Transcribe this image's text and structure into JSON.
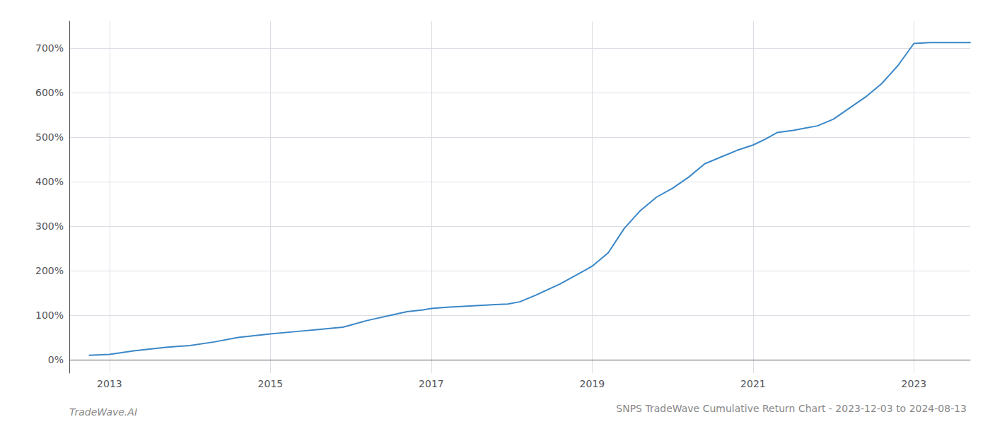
{
  "chart_data": {
    "type": "line",
    "title": "SNPS TradeWave Cumulative Return Chart - 2023-12-03 to 2024-08-13",
    "annotations": [
      "TradeWave.AI"
    ],
    "color": "#3a87c8",
    "x": [
      2012.75,
      2013.0,
      2013.3,
      2013.7,
      2014.0,
      2014.3,
      2014.6,
      2014.9,
      2015.0,
      2015.3,
      2015.6,
      2015.9,
      2016.0,
      2016.2,
      2016.5,
      2016.7,
      2016.9,
      2017.0,
      2017.2,
      2017.4,
      2017.6,
      2017.8,
      2017.95,
      2018.1,
      2018.3,
      2018.6,
      2018.9,
      2019.0,
      2019.2,
      2019.4,
      2019.6,
      2019.8,
      2020.0,
      2020.2,
      2020.4,
      2020.6,
      2020.8,
      2021.0,
      2021.15,
      2021.3,
      2021.5,
      2021.65,
      2021.8,
      2022.0,
      2022.2,
      2022.4,
      2022.5,
      2022.6,
      2022.7,
      2022.8,
      2022.9,
      2023.0,
      2023.2,
      2023.5,
      2023.7
    ],
    "values": [
      10,
      12,
      20,
      28,
      32,
      40,
      50,
      56,
      58,
      63,
      68,
      73,
      78,
      88,
      100,
      108,
      112,
      115,
      118,
      120,
      122,
      124,
      125,
      130,
      145,
      170,
      200,
      210,
      240,
      295,
      335,
      365,
      385,
      410,
      440,
      455,
      470,
      482,
      495,
      510,
      515,
      520,
      525,
      540,
      565,
      590,
      605,
      620,
      640,
      660,
      685,
      710,
      712,
      712,
      712
    ],
    "xlim": [
      2012.5,
      2023.7
    ],
    "xticks": [
      2013,
      2015,
      2017,
      2019,
      2021,
      2023
    ],
    "ylim": [
      -30,
      760
    ],
    "yticks": [
      {
        "value": 0,
        "label": "0%"
      },
      {
        "value": 100,
        "label": "100%"
      },
      {
        "value": 200,
        "label": "200%"
      },
      {
        "value": 300,
        "label": "300%"
      },
      {
        "value": 400,
        "label": "400%"
      },
      {
        "value": 500,
        "label": "500%"
      },
      {
        "value": 600,
        "label": "600%"
      },
      {
        "value": 700,
        "label": "700%"
      }
    ],
    "grid": true
  }
}
